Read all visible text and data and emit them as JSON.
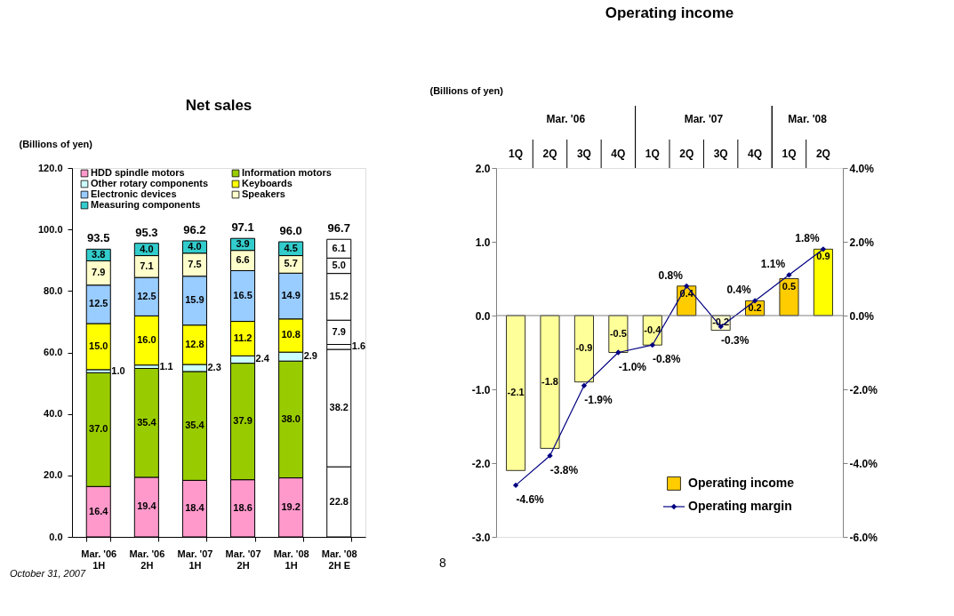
{
  "chart_data": [
    {
      "type": "bar",
      "title": "Net sales",
      "ylabel": "(Billions of yen)",
      "stacked": true,
      "legend": "top left",
      "grid": false,
      "categories": [
        "Mar. '06\n1H",
        "Mar. '06\n2H",
        "Mar. '07\n1H",
        "Mar. '07\n2H",
        "Mar. '08\n1H",
        "Mar. '08\n2H E"
      ],
      "ylim": [
        0,
        120
      ],
      "yticks": [
        {
          "value": 0,
          "label": "0.0"
        },
        {
          "value": 20,
          "label": "20.0"
        },
        {
          "value": 40,
          "label": "40.0"
        },
        {
          "value": 60,
          "label": "60.0"
        },
        {
          "value": 80,
          "label": "80.0"
        },
        {
          "value": 100,
          "label": "100.0"
        },
        {
          "value": 120,
          "label": "120.0"
        }
      ],
      "series": [
        {
          "name": "HDD spindle motors",
          "color": "#ff99cc",
          "colors": [
            "#ff99cc",
            "#ff99cc",
            "#ff99cc",
            "#ff99cc",
            "#ff99cc",
            "#ffffff"
          ],
          "values": [
            16.4,
            19.4,
            18.4,
            18.6,
            19.2,
            22.8
          ],
          "value_labels": [
            "16.4",
            "19.4",
            "18.4",
            "18.6",
            "19.2",
            "22.8"
          ]
        },
        {
          "name": "Information motors",
          "color": "#99cc00",
          "colors": [
            "#99cc00",
            "#99cc00",
            "#99cc00",
            "#99cc00",
            "#99cc00",
            "#ffffff"
          ],
          "values": [
            37.0,
            35.4,
            35.4,
            37.9,
            38.0,
            38.2
          ],
          "value_labels": [
            "37.0",
            "35.4",
            "35.4",
            "37.9",
            "38.0",
            "38.2"
          ]
        },
        {
          "name": "Other rotary components",
          "color": "#ccffff",
          "colors": [
            "#ccffff",
            "#ccffff",
            "#ccffff",
            "#ccffff",
            "#ccffff",
            "#ffffff"
          ],
          "values": [
            1.0,
            1.1,
            2.3,
            2.4,
            2.9,
            1.6
          ],
          "value_labels": [
            "1.0",
            "1.1",
            "2.3",
            "2.4",
            "2.9",
            "1.6"
          ]
        },
        {
          "name": "Keyboards",
          "color": "#ffff00",
          "colors": [
            "#ffff00",
            "#ffff00",
            "#ffff00",
            "#ffff00",
            "#ffff00",
            "#ffffff"
          ],
          "values": [
            15.0,
            16.0,
            12.8,
            11.2,
            10.8,
            7.9
          ],
          "value_labels": [
            "15.0",
            "16.0",
            "12.8",
            "11.2",
            "10.8",
            "7.9"
          ]
        },
        {
          "name": "Electronic devices",
          "color": "#99ccff",
          "colors": [
            "#99ccff",
            "#99ccff",
            "#99ccff",
            "#99ccff",
            "#99ccff",
            "#ffffff"
          ],
          "values": [
            12.5,
            12.5,
            15.9,
            16.5,
            14.9,
            15.2
          ],
          "value_labels": [
            "12.5",
            "12.5",
            "15.9",
            "16.5",
            "14.9",
            "15.2"
          ]
        },
        {
          "name": "Speakers",
          "color": "#ffffcc",
          "colors": [
            "#ffffcc",
            "#ffffcc",
            "#ffffcc",
            "#ffffcc",
            "#ffffcc",
            "#ffffff"
          ],
          "values": [
            7.9,
            7.1,
            7.5,
            6.6,
            5.7,
            5.0
          ],
          "value_labels": [
            "7.9",
            "7.1",
            "7.5",
            "6.6",
            "5.7",
            "5.0"
          ]
        },
        {
          "name": "Measuring components",
          "color": "#33cccc",
          "colors": [
            "#33cccc",
            "#33cccc",
            "#33cccc",
            "#33cccc",
            "#33cccc",
            "#ffffff"
          ],
          "values": [
            3.8,
            4.0,
            4.0,
            3.9,
            4.5,
            6.1
          ],
          "value_labels": [
            "3.8",
            "4.0",
            "4.0",
            "3.9",
            "4.5",
            "6.1"
          ]
        }
      ],
      "totals": [
        "93.5",
        "95.3",
        "96.2",
        "97.1",
        "96.0",
        "96.7"
      ],
      "annotations": [
        "October 31, 2007"
      ]
    },
    {
      "type": "bar",
      "title": "Operating income",
      "ylabel": "(Billions of yen)",
      "legend": "bottom right",
      "grid": false,
      "categories": [
        "1Q",
        "2Q",
        "3Q",
        "4Q",
        "1Q",
        "2Q",
        "3Q",
        "4Q",
        "1Q",
        "2Q"
      ],
      "ylim": [
        -3,
        2
      ],
      "yticks": [
        {
          "value": -3,
          "label": "-3.0"
        },
        {
          "value": -2,
          "label": "-2.0"
        },
        {
          "value": -1,
          "label": "-1.0"
        },
        {
          "value": 0,
          "label": "0.0"
        },
        {
          "value": 1,
          "label": "1.0"
        },
        {
          "value": 2,
          "label": "2.0"
        }
      ],
      "y2lim": [
        -6,
        4
      ],
      "y2ticks": [
        {
          "value": -6,
          "label": "-6.0%"
        },
        {
          "value": -4,
          "label": "-4.0%"
        },
        {
          "value": -2,
          "label": "-2.0%"
        },
        {
          "value": 0,
          "label": "0.0%"
        },
        {
          "value": 2,
          "label": "2.0%"
        },
        {
          "value": 4,
          "label": "4.0%"
        }
      ],
      "ref_lines": [
        {
          "axis": "y",
          "value": 0,
          "color": "#808080"
        }
      ],
      "series": [
        {
          "name": "Operating income",
          "type": "bar",
          "color": "#ffcc00",
          "colors": [
            "#ffff99",
            "#ffff99",
            "#ffff99",
            "#ffff99",
            "#ffff99",
            "#ffcc00",
            "#ffffcc",
            "#ffcc00",
            "#ffcc00",
            "#ffff00"
          ],
          "values": [
            -2.1,
            -1.8,
            -0.9,
            -0.5,
            -0.4,
            0.4,
            -0.2,
            0.2,
            0.5,
            0.9
          ],
          "value_labels": [
            "-2.1",
            "-1.8",
            "-0.9",
            "-0.5",
            "-0.4",
            "0.4",
            "-0.2",
            "0.2",
            "0.5",
            "0.9"
          ]
        },
        {
          "name": "Operating margin",
          "type": "line",
          "axis": "y2",
          "color": "#000080",
          "marker": "diamond",
          "values": [
            -4.6,
            -3.8,
            -1.9,
            -1.0,
            -0.8,
            0.8,
            -0.3,
            0.4,
            1.1,
            1.8
          ],
          "value_labels": [
            "-4.6%",
            "-3.8%",
            "-1.9%",
            "-1.0%",
            "-0.8%",
            "0.8%",
            "-0.3%",
            "0.4%",
            "1.1%",
            "1.8%"
          ]
        }
      ],
      "annotations": [
        "Mar. '06",
        "Mar. '07",
        "Mar. '08",
        "8"
      ]
    }
  ]
}
